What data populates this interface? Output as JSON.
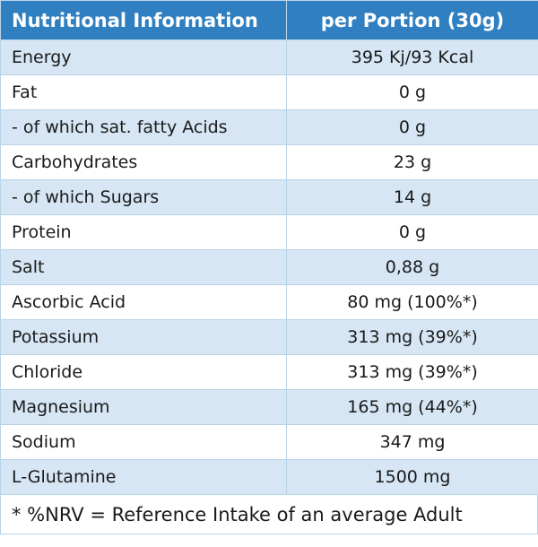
{
  "table": {
    "headers": [
      "Nutritional Information",
      "per Portion (30g)"
    ],
    "rows": [
      {
        "name": "Energy",
        "value": "395 Kj/93 Kcal"
      },
      {
        "name": "Fat",
        "value": "0 g"
      },
      {
        "name": " - of which sat. fatty Acids",
        "value": "0 g"
      },
      {
        "name": "Carbohydrates",
        "value": "23 g"
      },
      {
        "name": " - of which Sugars",
        "value": "14 g"
      },
      {
        "name": "Protein",
        "value": "0 g"
      },
      {
        "name": "Salt",
        "value": "0,88 g"
      },
      {
        "name": "Ascorbic Acid",
        "value": "80 mg (100%*)"
      },
      {
        "name": "Potassium",
        "value": "313 mg (39%*)"
      },
      {
        "name": "Chloride",
        "value": "313 mg (39%*)"
      },
      {
        "name": "Magnesium",
        "value": "165 mg (44%*)"
      },
      {
        "name": "Sodium",
        "value": "347 mg"
      },
      {
        "name": "L-Glutamine",
        "value": "1500 mg"
      }
    ],
    "footnote": "* %NRV = Reference Intake of an average Adult"
  },
  "colors": {
    "header_bg": "#2f7fc1",
    "stripe_bg": "#d6e6f4",
    "border": "#b8d3e8"
  }
}
